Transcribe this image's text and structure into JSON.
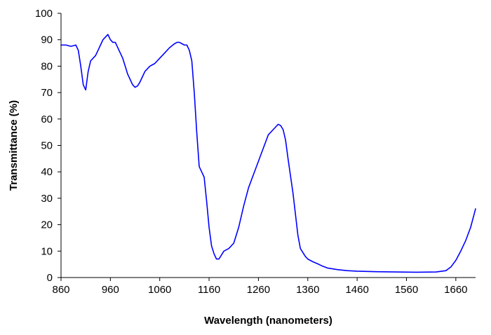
{
  "chart_data": {
    "type": "line",
    "title": "",
    "xlabel": "Wavelength (nanometers)",
    "ylabel": "Transmittance (%)",
    "xlim": [
      860,
      1700
    ],
    "ylim": [
      0,
      100
    ],
    "x_ticks": [
      "860",
      "960",
      "1060",
      "1160",
      "1260",
      "1360",
      "1460",
      "1560",
      "1660"
    ],
    "y_ticks": [
      "0",
      "10",
      "20",
      "30",
      "40",
      "50",
      "60",
      "70",
      "80",
      "90",
      "100"
    ],
    "grid": false,
    "legend": "none",
    "series": [
      {
        "color": "#0000FF",
        "x": [
          860,
          870,
          880,
          890,
          895,
          900,
          905,
          910,
          915,
          920,
          925,
          930,
          935,
          940,
          945,
          950,
          955,
          960,
          965,
          970,
          975,
          980,
          985,
          990,
          995,
          1000,
          1005,
          1010,
          1015,
          1020,
          1025,
          1030,
          1035,
          1040,
          1045,
          1050,
          1060,
          1070,
          1080,
          1090,
          1095,
          1100,
          1105,
          1110,
          1115,
          1120,
          1125,
          1130,
          1135,
          1140,
          1145,
          1150,
          1155,
          1160,
          1165,
          1170,
          1175,
          1180,
          1185,
          1190,
          1195,
          1200,
          1210,
          1220,
          1230,
          1240,
          1250,
          1260,
          1270,
          1280,
          1290,
          1295,
          1300,
          1305,
          1310,
          1315,
          1320,
          1330,
          1340,
          1345,
          1350,
          1355,
          1360,
          1370,
          1380,
          1390,
          1400,
          1420,
          1440,
          1460,
          1500,
          1540,
          1580,
          1620,
          1640,
          1650,
          1660,
          1670,
          1680,
          1690,
          1700
        ],
        "y": [
          88,
          88,
          87.5,
          88,
          86,
          80,
          73,
          71,
          78,
          82,
          83,
          84,
          86,
          88,
          90,
          91,
          92,
          90,
          89,
          89,
          87,
          85,
          83,
          80,
          77,
          75,
          73,
          72,
          72.5,
          74,
          76,
          78,
          79,
          80,
          80.5,
          81,
          83,
          85,
          87,
          88.5,
          89,
          89,
          88.5,
          88,
          88,
          86,
          82,
          70,
          55,
          42,
          40,
          38,
          29,
          19,
          12,
          9,
          7,
          7,
          8.5,
          10,
          10.5,
          11,
          13,
          19,
          27,
          34,
          39,
          44,
          49,
          54,
          56,
          57,
          58,
          57.5,
          56,
          52,
          45,
          32,
          16,
          11,
          9.5,
          8,
          7,
          6,
          5.2,
          4.3,
          3.6,
          3.0,
          2.6,
          2.4,
          2.2,
          2.1,
          2.0,
          2.1,
          2.6,
          4,
          6.5,
          10,
          14,
          19,
          26
        ]
      }
    ]
  }
}
